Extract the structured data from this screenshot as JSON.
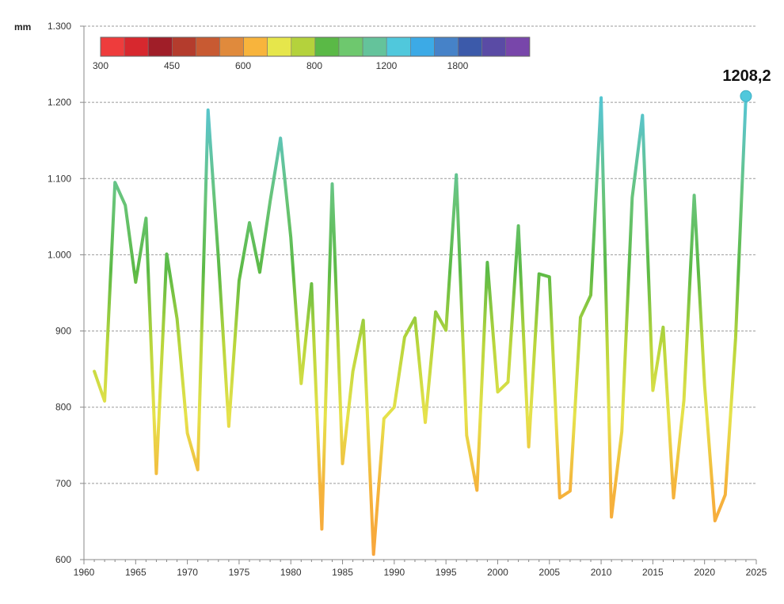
{
  "chart_data": {
    "type": "line",
    "ylabel": "mm",
    "ylim": [
      600,
      1300
    ],
    "xlim": [
      1960,
      2025
    ],
    "x_ticks": [
      1960,
      1965,
      1970,
      1975,
      1980,
      1985,
      1990,
      1995,
      2000,
      2005,
      2010,
      2015,
      2020,
      2025
    ],
    "y_ticks": [
      600,
      700,
      800,
      900,
      1000,
      1100,
      1200,
      1300
    ],
    "y_tick_labels": [
      "600",
      "700",
      "800",
      "900",
      "1.000",
      "1.100",
      "1.200",
      "1.300"
    ],
    "grid": "horizontal-dashed",
    "x": [
      1961,
      1962,
      1963,
      1964,
      1965,
      1966,
      1967,
      1968,
      1969,
      1970,
      1971,
      1972,
      1973,
      1974,
      1975,
      1976,
      1977,
      1978,
      1979,
      1980,
      1981,
      1982,
      1983,
      1984,
      1985,
      1986,
      1987,
      1988,
      1989,
      1990,
      1991,
      1992,
      1993,
      1994,
      1995,
      1996,
      1997,
      1998,
      1999,
      2000,
      2001,
      2002,
      2003,
      2004,
      2005,
      2006,
      2007,
      2008,
      2009,
      2010,
      2011,
      2012,
      2013,
      2014,
      2015,
      2016,
      2017,
      2018,
      2019,
      2020,
      2021,
      2022,
      2023,
      2024
    ],
    "y": [
      847,
      808,
      1095,
      1065,
      964,
      1048,
      713,
      1001,
      916,
      766,
      718,
      1190,
      995,
      775,
      966,
      1042,
      977,
      1070,
      1153,
      1023,
      831,
      962,
      640,
      1093,
      726,
      847,
      914,
      607,
      785,
      800,
      892,
      917,
      780,
      925,
      901,
      1105,
      763,
      691,
      990,
      820,
      833,
      1038,
      748,
      975,
      971,
      681,
      690,
      918,
      947,
      1206,
      656,
      768,
      1075,
      1183,
      822,
      905,
      681,
      809,
      1078,
      829,
      651,
      685,
      891,
      1208.2
    ],
    "highlight": {
      "x": 2024,
      "y": 1208.2,
      "label": "1208,2"
    },
    "color_scale": {
      "colors": [
        "#ee3c3c",
        "#d7282e",
        "#a01e28",
        "#b43c2d",
        "#c85a32",
        "#e08a3c",
        "#f8b43c",
        "#e6e64b",
        "#b4d23c",
        "#5ab946",
        "#6ec86e",
        "#64c39b",
        "#50c8dc",
        "#3caae6",
        "#4682c8",
        "#3c5aaa",
        "#5a4ba5",
        "#7846aa"
      ],
      "labels": [
        "300",
        "450",
        "600",
        "800",
        "1200",
        "1800"
      ]
    }
  }
}
